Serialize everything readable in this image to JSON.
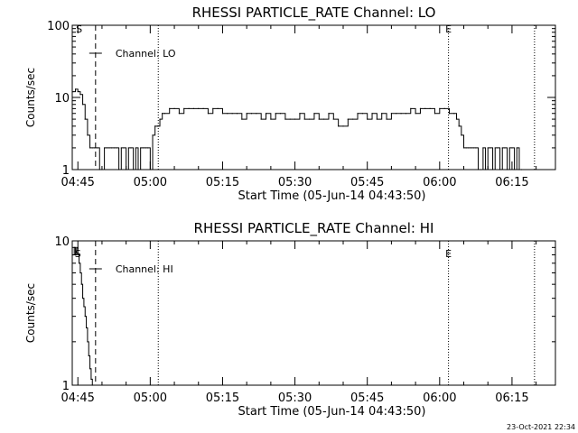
{
  "chart_data": [
    {
      "type": "line",
      "title": "RHESSI PARTICLE_RATE Channel: LO",
      "xlabel": "Start Time (05-Jun-14 04:43:50)",
      "ylabel": "Counts/sec",
      "yscale": "log",
      "ylim": [
        1,
        100
      ],
      "ytick_labels": [
        "1",
        "10",
        "100"
      ],
      "xtick_labels": [
        "04:45",
        "05:00",
        "05:15",
        "05:30",
        "05:45",
        "06:00",
        "06:15"
      ],
      "xlim": [
        "04:43:50",
        "06:24:00"
      ],
      "legend": "Channel: LO",
      "legend_position": "top-left",
      "markers": [
        {
          "label": "S",
          "time": "04:45:15"
        },
        {
          "label": "E",
          "time": "06:01:50"
        }
      ],
      "vertical_lines": [
        {
          "time": "04:48:40",
          "style": "dashed"
        },
        {
          "time": "05:01:40",
          "style": "dotted"
        },
        {
          "time": "06:01:50",
          "style": "dotted"
        },
        {
          "time": "06:19:40",
          "style": "dotted"
        }
      ],
      "series": [
        {
          "x": [
            "04:44:00",
            "04:44:30",
            "04:45:00",
            "04:45:30",
            "04:46:00",
            "04:46:30",
            "04:47:00",
            "04:47:30",
            "04:48:00",
            "04:48:30",
            "04:49:00",
            "04:49:30",
            "04:50:00",
            "04:50:30",
            "04:51:00",
            "04:51:30",
            "04:52:00",
            "04:52:30",
            "04:53:00",
            "04:53:30",
            "04:54:00",
            "04:54:30",
            "04:55:00",
            "04:55:30",
            "04:56:00",
            "04:56:30",
            "04:57:00",
            "04:57:30",
            "04:58:00",
            "04:58:30",
            "04:59:00",
            "04:59:30",
            "05:00:00",
            "05:00:30",
            "05:01:00",
            "05:01:30",
            "05:02:00",
            "05:02:30",
            "05:03:00",
            "05:04:00",
            "05:05:00",
            "05:06:00",
            "05:07:00",
            "05:08:00",
            "05:09:00",
            "05:10:00",
            "05:11:00",
            "05:12:00",
            "05:13:00",
            "05:14:00",
            "05:15:00",
            "05:16:00",
            "05:17:00",
            "05:18:00",
            "05:19:00",
            "05:20:00",
            "05:21:00",
            "05:22:00",
            "05:23:00",
            "05:24:00",
            "05:25:00",
            "05:26:00",
            "05:27:00",
            "05:28:00",
            "05:29:00",
            "05:30:00",
            "05:31:00",
            "05:32:00",
            "05:33:00",
            "05:34:00",
            "05:35:00",
            "05:36:00",
            "05:37:00",
            "05:38:00",
            "05:39:00",
            "05:40:00",
            "05:41:00",
            "05:42:00",
            "05:43:00",
            "05:44:00",
            "05:45:00",
            "05:46:00",
            "05:47:00",
            "05:48:00",
            "05:49:00",
            "05:50:00",
            "05:51:00",
            "05:52:00",
            "05:53:00",
            "05:54:00",
            "05:55:00",
            "05:56:00",
            "05:57:00",
            "05:58:00",
            "05:59:00",
            "06:00:00",
            "06:01:00",
            "06:02:00",
            "06:03:00",
            "06:03:30",
            "06:04:00",
            "06:04:30",
            "06:05:00",
            "06:05:30",
            "06:06:00",
            "06:06:30",
            "06:07:00",
            "06:07:30",
            "06:08:00",
            "06:08:30",
            "06:09:00",
            "06:09:30",
            "06:10:00",
            "06:10:30",
            "06:11:00",
            "06:11:30",
            "06:12:00",
            "06:12:30",
            "06:13:00",
            "06:13:30",
            "06:14:00",
            "06:14:30",
            "06:15:00",
            "06:15:30",
            "06:16:00",
            "06:16:30",
            "06:17:00"
          ],
          "y": [
            12,
            13,
            12,
            11,
            8,
            5,
            3,
            2,
            2,
            2,
            2,
            1,
            1,
            2,
            2,
            2,
            2,
            2,
            2,
            1,
            2,
            2,
            1,
            2,
            2,
            1,
            2,
            1,
            2,
            2,
            2,
            2,
            1,
            3,
            4,
            4,
            5,
            6,
            6,
            7,
            7,
            6,
            7,
            7,
            7,
            7,
            7,
            6,
            7,
            7,
            6,
            6,
            6,
            6,
            5,
            6,
            6,
            6,
            5,
            6,
            5,
            6,
            6,
            5,
            5,
            5,
            6,
            5,
            5,
            6,
            5,
            5,
            6,
            5,
            4,
            4,
            5,
            5,
            6,
            6,
            5,
            6,
            5,
            6,
            5,
            6,
            6,
            6,
            6,
            7,
            6,
            7,
            7,
            7,
            6,
            7,
            7,
            6,
            6,
            5,
            4,
            3,
            2,
            2,
            2,
            2,
            2,
            2,
            1,
            1,
            2,
            1,
            2,
            2,
            1,
            2,
            2,
            1,
            2,
            2,
            1,
            2,
            2,
            1,
            2,
            1,
            1
          ]
        }
      ]
    },
    {
      "type": "line",
      "title": "RHESSI PARTICLE_RATE Channel: HI",
      "xlabel": "Start Time (05-Jun-14 04:43:50)",
      "ylabel": "Counts/sec",
      "yscale": "log",
      "ylim": [
        1,
        10
      ],
      "ytick_labels": [
        "1",
        "10"
      ],
      "xtick_labels": [
        "04:45",
        "05:00",
        "05:15",
        "05:30",
        "05:45",
        "06:00",
        "06:15"
      ],
      "xlim": [
        "04:43:50",
        "06:24:00"
      ],
      "legend": "Channel: HI",
      "legend_position": "top-left",
      "markers": [
        {
          "label": "S",
          "time": "04:45:00"
        },
        {
          "label": "E",
          "time": "06:01:50"
        }
      ],
      "vertical_lines": [
        {
          "time": "04:48:40",
          "style": "dashed"
        },
        {
          "time": "05:01:40",
          "style": "dotted"
        },
        {
          "time": "06:01:50",
          "style": "dotted"
        },
        {
          "time": "06:19:40",
          "style": "dotted"
        }
      ],
      "series": [
        {
          "x": [
            "04:44:00",
            "04:44:15",
            "04:44:30",
            "04:44:45",
            "04:45:00",
            "04:45:15",
            "04:45:30",
            "04:45:45",
            "04:46:00",
            "04:46:15",
            "04:46:30",
            "04:46:45",
            "04:47:00",
            "04:47:15",
            "04:47:30",
            "04:47:45",
            "04:48:00"
          ],
          "y": [
            8,
            9,
            8,
            9,
            8,
            7,
            6,
            5,
            4,
            3.5,
            3,
            2.5,
            2,
            1.6,
            1.3,
            1.1,
            1
          ]
        }
      ]
    }
  ],
  "footer": {
    "timestamp": "23-Oct-2021 22:34"
  }
}
